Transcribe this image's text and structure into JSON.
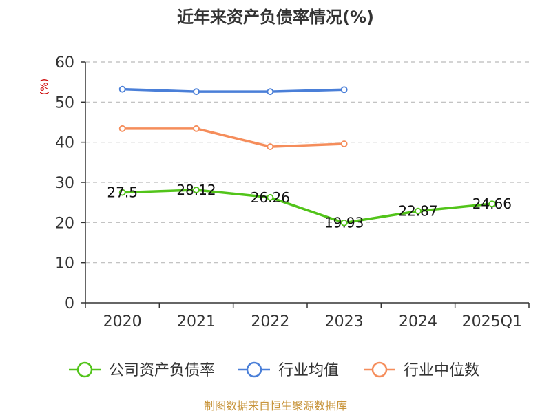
{
  "chart_data": {
    "type": "line",
    "title": "近年来资产负债率情况(%)",
    "unit_label": "(%)",
    "categories": [
      "2020",
      "2021",
      "2022",
      "2023",
      "2024",
      "2025Q1"
    ],
    "ylim": [
      0,
      60
    ],
    "yticks": [
      "0",
      "10",
      "20",
      "30",
      "40",
      "50",
      "60"
    ],
    "grid": true,
    "legend_position": "bottom",
    "series": [
      {
        "name": "公司资产负债率",
        "color": "#52c41a",
        "values": [
          27.5,
          28.12,
          26.26,
          19.93,
          22.87,
          24.66
        ],
        "labels": [
          "27.5",
          "28.12",
          "26.26",
          "19.93",
          "22.87",
          "24.66"
        ]
      },
      {
        "name": "行业均值",
        "color": "#4a7fd8",
        "values": [
          53.2,
          52.6,
          52.6,
          53.1,
          null,
          null
        ]
      },
      {
        "name": "行业中位数",
        "color": "#f58d5b",
        "values": [
          43.4,
          43.4,
          38.9,
          39.6,
          null,
          null
        ]
      }
    ],
    "source": "制图数据来自恒生聚源数据库"
  }
}
